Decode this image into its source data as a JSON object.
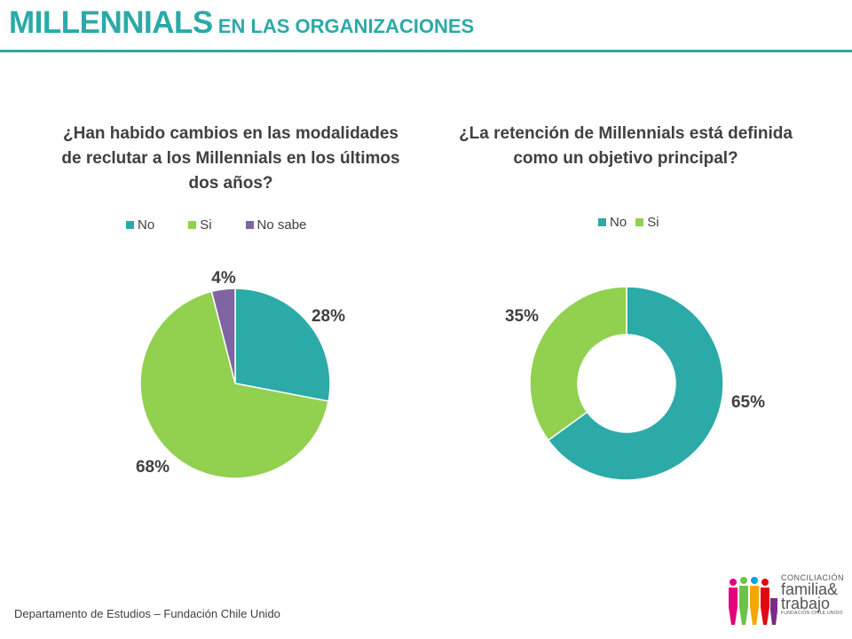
{
  "header": {
    "title_main": "MILLENNIALS",
    "title_sub": "EN LAS ORGANIZACIONES"
  },
  "colors": {
    "teal": "#2baaa8",
    "green": "#92d050",
    "purple": "#8064a2",
    "text": "#404040"
  },
  "chart_data": [
    {
      "type": "pie",
      "title_lines": [
        "¿Han habido cambios en las modalidades",
        "de reclutar a los Millennials  en los últimos",
        "dos años?"
      ],
      "categories": [
        "No",
        "Si",
        "No sabe"
      ],
      "values": [
        28,
        68,
        4
      ],
      "labels": [
        "28%",
        "68%",
        "4%"
      ],
      "colors": [
        "#2baaa8",
        "#92d050",
        "#8064a2"
      ],
      "legend_position": "top"
    },
    {
      "type": "doughnut",
      "title_lines": [
        "¿La retención de Millennials  está definida",
        "como un objetivo principal?"
      ],
      "categories": [
        "No",
        "Si"
      ],
      "values": [
        65,
        35
      ],
      "labels": [
        "65%",
        "35%"
      ],
      "colors": [
        "#2baaa8",
        "#92d050"
      ],
      "legend_position": "top"
    }
  ],
  "footer": {
    "text": "Departamento de Estudios – Fundación Chile Unido"
  },
  "logo": {
    "line1": "CONCILIACIÓN",
    "line2": "familia&",
    "line3": "trabajo",
    "line4": "FUNDACIÓN CHILE UNIDO"
  }
}
